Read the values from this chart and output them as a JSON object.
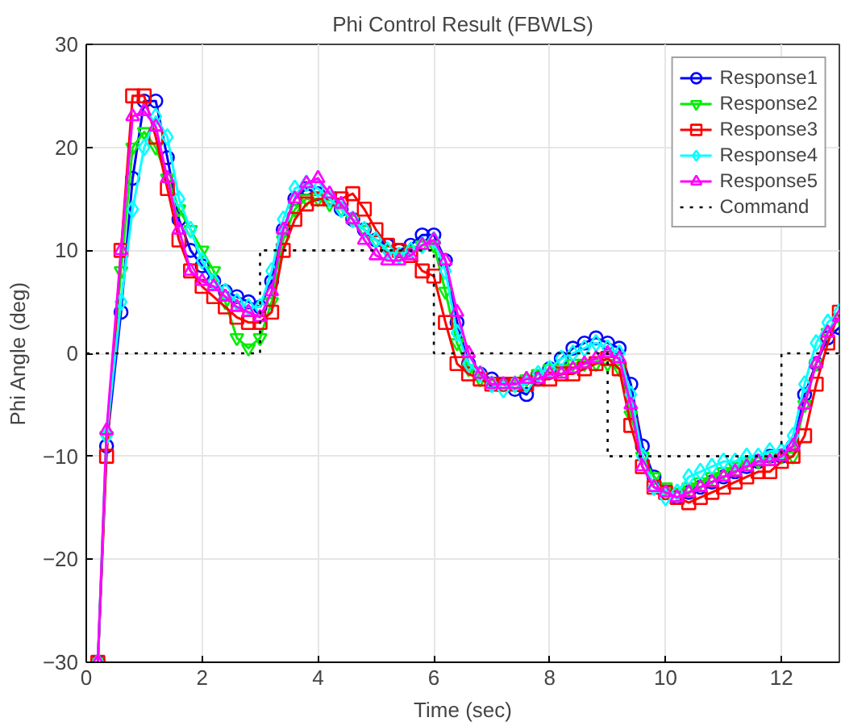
{
  "chart_data": {
    "type": "line",
    "title": "Phi Control Result (FBWLS)",
    "xlabel": "Time (sec)",
    "ylabel": "Phi Angle (deg)",
    "x": [
      0.2,
      0.35,
      0.6,
      0.8,
      1.0,
      1.2,
      1.4,
      1.6,
      1.8,
      2.0,
      2.2,
      2.4,
      2.6,
      2.8,
      3.0,
      3.2,
      3.4,
      3.6,
      3.8,
      4.0,
      4.2,
      4.4,
      4.6,
      4.8,
      5.0,
      5.2,
      5.4,
      5.6,
      5.8,
      6.0,
      6.2,
      6.4,
      6.6,
      6.8,
      7.0,
      7.2,
      7.4,
      7.6,
      7.8,
      8.0,
      8.2,
      8.4,
      8.6,
      8.8,
      9.0,
      9.2,
      9.4,
      9.6,
      9.8,
      10.0,
      10.2,
      10.4,
      10.6,
      10.8,
      11.0,
      11.2,
      11.4,
      11.6,
      11.8,
      12.0,
      12.2,
      12.4,
      12.6,
      12.8,
      13.0
    ],
    "series": [
      {
        "name": "Response1",
        "color": "#0000ff",
        "marker": "circle",
        "values": [
          -30,
          -9,
          4,
          17,
          24.5,
          24.5,
          19,
          13,
          10,
          8.5,
          7,
          6,
          5.5,
          5,
          4.5,
          7,
          12,
          15,
          16,
          15.5,
          15,
          14,
          13,
          12,
          11,
          10.5,
          10,
          10.5,
          11.5,
          11.5,
          9,
          3,
          -1,
          -2,
          -2.5,
          -3,
          -3.5,
          -4,
          -2.5,
          -1.5,
          -0.5,
          0.5,
          1,
          1.5,
          1,
          0.5,
          -3,
          -9,
          -12,
          -13.5,
          -14,
          -13.5,
          -13,
          -12.5,
          -12,
          -11.5,
          -11,
          -10.5,
          -10,
          -10,
          -9,
          -4,
          -1,
          1.5,
          2.5
        ]
      },
      {
        "name": "Response2",
        "color": "#00ee00",
        "marker": "triangle_down",
        "values": [
          -30,
          -8,
          8,
          20,
          21.5,
          20,
          17,
          14,
          12,
          10,
          8,
          5,
          1.5,
          0.5,
          1.5,
          5,
          11,
          14,
          15,
          15,
          14.5,
          14,
          13,
          12,
          11,
          10,
          9.5,
          10,
          10.5,
          10.5,
          6,
          1,
          -1.5,
          -2.5,
          -3,
          -3,
          -3,
          -2.5,
          -2,
          -1.5,
          -1.5,
          -1,
          -1,
          -1,
          -1,
          -1.5,
          -6,
          -10,
          -12,
          -13,
          -13.5,
          -13,
          -12.5,
          -12,
          -11.5,
          -11,
          -10.5,
          -10.5,
          -10,
          -10,
          -10,
          -5,
          -1,
          2,
          3.5
        ]
      },
      {
        "name": "Response3",
        "color": "#ff0000",
        "marker": "square",
        "values": [
          -30,
          -10,
          10,
          25,
          25,
          21,
          16,
          11,
          8,
          6.5,
          5.5,
          4.5,
          3.5,
          3,
          3,
          4,
          10,
          13,
          14.5,
          15,
          15,
          15,
          15.5,
          14,
          12,
          10.5,
          10,
          9.5,
          8,
          7.5,
          3,
          -1,
          -2,
          -2.5,
          -3,
          -3,
          -3,
          -3,
          -2.5,
          -2.5,
          -2,
          -2,
          -1.5,
          -1,
          -0.5,
          -1.5,
          -7,
          -11,
          -13,
          -13.5,
          -14,
          -14.5,
          -14,
          -13.5,
          -13,
          -12.5,
          -12,
          -11.5,
          -11.5,
          -10.5,
          -10,
          -8,
          -3,
          1,
          4
        ]
      },
      {
        "name": "Response4",
        "color": "#00ffff",
        "marker": "diamond",
        "values": [
          -30,
          -8,
          5,
          14,
          20,
          23,
          21,
          15,
          12,
          9,
          7,
          6,
          5,
          4.5,
          4.5,
          8,
          13,
          16,
          16.5,
          16,
          15,
          14,
          13,
          12,
          11,
          10,
          9.5,
          10,
          10.5,
          11,
          8,
          2,
          -1,
          -2,
          -3,
          -3.5,
          -3,
          -3,
          -2,
          -1.5,
          -0.5,
          0,
          0.5,
          1,
          0.5,
          0,
          -4,
          -10,
          -13,
          -14,
          -13.5,
          -12,
          -11.5,
          -11,
          -10.5,
          -10.5,
          -10,
          -10,
          -9.5,
          -9.5,
          -8,
          -3,
          1,
          3,
          4
        ]
      },
      {
        "name": "Response5",
        "color": "#ff00ff",
        "marker": "triangle",
        "values": [
          -30,
          -7.5,
          10,
          23,
          23.5,
          22,
          17,
          12,
          8,
          7,
          6.5,
          5.5,
          4.5,
          4,
          3.5,
          6,
          12,
          15,
          16.5,
          17,
          15.5,
          14.5,
          13,
          11,
          9.5,
          9,
          9,
          9.5,
          10.5,
          11,
          9,
          4,
          0,
          -2,
          -3,
          -3,
          -3,
          -2.5,
          -2.5,
          -2,
          -2,
          -1.5,
          -1,
          -0.5,
          0,
          -0.5,
          -5,
          -11,
          -13,
          -13.5,
          -14,
          -13.5,
          -13,
          -12.5,
          -12,
          -11.5,
          -11,
          -10.5,
          -10.5,
          -10,
          -9,
          -5,
          -1,
          2,
          3.5
        ]
      },
      {
        "name": "Command",
        "color": "#000000",
        "type": "step",
        "line_style": "dotted",
        "marker": "none",
        "x": [
          0,
          3,
          6,
          9,
          12,
          13
        ],
        "values": [
          0,
          10,
          0,
          -10,
          0,
          0
        ]
      }
    ],
    "xlim": [
      0,
      13
    ],
    "ylim": [
      -30,
      30
    ],
    "xticks": [
      0,
      2,
      4,
      6,
      8,
      10,
      12
    ],
    "yticks": [
      -30,
      -20,
      -10,
      0,
      10,
      20,
      30
    ],
    "grid": true,
    "legend": "top right"
  }
}
